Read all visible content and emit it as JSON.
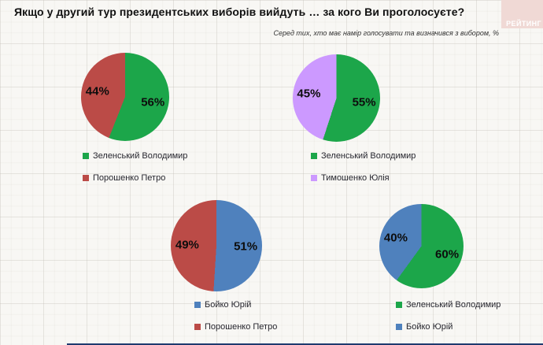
{
  "header": {
    "title": "Якщо у другий тур президентських виборів вийдуть … за кого Ви проголосуєте?",
    "subtitle": "Серед тих, хто має намір голосувати  та визначився з вибором, %",
    "logo_text": "РЕЙТИНГ"
  },
  "colors": {
    "green": "#1ca64a",
    "red": "#bb4b47",
    "blue": "#4f81bd",
    "purple": "#cc99ff",
    "logo_bg": "#f0d9d5",
    "logo_text": "#ffffff",
    "background": "#f8f7f4",
    "percent_label": "#0d0d0d",
    "legend_text": "#26262e",
    "footer_line": "#1f3a6e"
  },
  "chart_data": [
    {
      "type": "pie",
      "position": "top-left",
      "legend_position": "bottom-left",
      "slices": [
        {
          "label": "Зеленський Володимир",
          "value": 56,
          "color_key": "green"
        },
        {
          "label": "Порошенко Петро",
          "value": 44,
          "color_key": "red"
        }
      ]
    },
    {
      "type": "pie",
      "position": "top-right",
      "legend_position": "bottom-left",
      "slices": [
        {
          "label": "Зеленський Володимир",
          "value": 55,
          "color_key": "green"
        },
        {
          "label": "Тимошенко Юлія",
          "value": 45,
          "color_key": "purple"
        }
      ]
    },
    {
      "type": "pie",
      "position": "bottom-left",
      "legend_position": "bottom-left",
      "slices": [
        {
          "label": "Бойко Юрій",
          "value": 51,
          "color_key": "blue"
        },
        {
          "label": "Порошенко Петро",
          "value": 49,
          "color_key": "red"
        }
      ]
    },
    {
      "type": "pie",
      "position": "bottom-right",
      "legend_position": "bottom-left",
      "slices": [
        {
          "label": "Зеленський Володимир",
          "value": 60,
          "color_key": "green"
        },
        {
          "label": "Бойко Юрій",
          "value": 40,
          "color_key": "blue"
        }
      ]
    }
  ]
}
